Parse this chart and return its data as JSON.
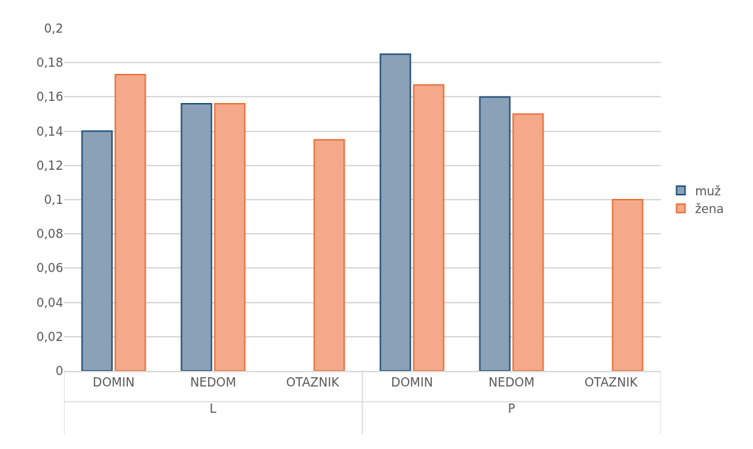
{
  "chart_data": {
    "type": "bar",
    "categories": [
      "DOMIN",
      "NEDOM",
      "OTAZNIK",
      "DOMIN",
      "NEDOM",
      "OTAZNIK"
    ],
    "series": [
      {
        "name": "muž",
        "color": "#8aa1b7",
        "values": [
          0.14,
          0.156,
          null,
          0.185,
          0.16,
          null
        ]
      },
      {
        "name": "žena",
        "color": "#f4a98a",
        "values": [
          0.173,
          0.156,
          0.135,
          0.167,
          0.15,
          0.1
        ]
      }
    ],
    "annotations": [
      "L",
      "P"
    ],
    "ylim": [
      0,
      0.2
    ],
    "yticks": [
      0,
      {
        "value": 0.02,
        "label": "0,02"
      },
      {
        "value": 0.04,
        "label": "0,04"
      },
      {
        "value": 0.06,
        "label": "0,06"
      },
      {
        "value": 0.08,
        "label": "0,08"
      },
      {
        "value": 0.1,
        "label": "0,1"
      },
      {
        "value": 0.12,
        "label": "0,12"
      },
      {
        "value": 0.14,
        "label": "0,14"
      },
      {
        "value": 0.16,
        "label": "0,16"
      },
      {
        "value": 0.18,
        "label": "0,18"
      },
      {
        "value": 0.2,
        "label": "0,2"
      }
    ],
    "grid": "y",
    "legend": "right"
  }
}
